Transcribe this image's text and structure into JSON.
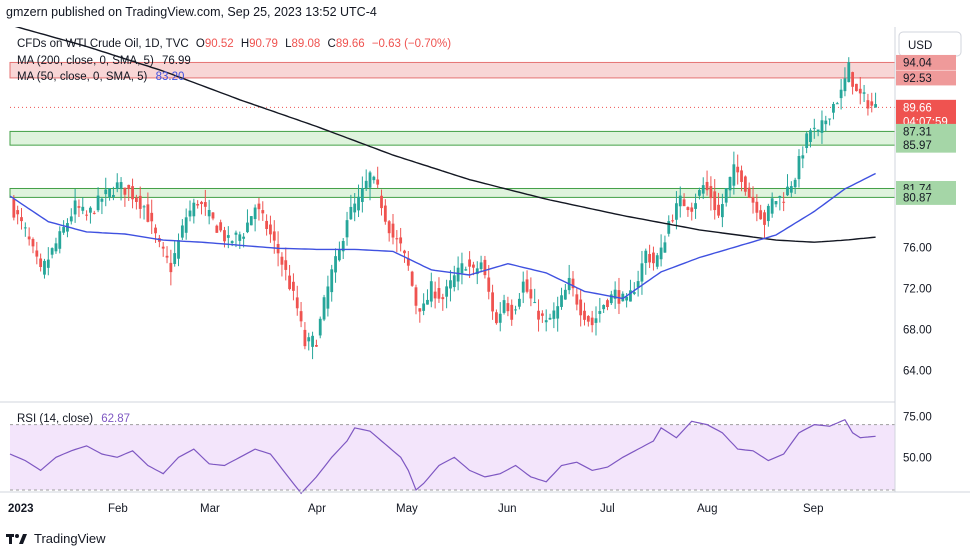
{
  "header": {
    "published": "gmzern published on TradingView.com, Sep 25, 2023 13:52 UTC-4"
  },
  "legend": {
    "symbol": "CFDs on WTI Crude Oil, 1D, TVC",
    "o_label": "O",
    "o": "90.52",
    "h_label": "H",
    "h": "90.79",
    "l_label": "L",
    "l": "89.08",
    "c_label": "C",
    "c": "89.66",
    "change": "−0.63 (−0.70%)",
    "ma200_label": "MA (200, close, 0, SMA, 5)",
    "ma200_value": "76.99",
    "ma50_label": "MA (50, close, 0, SMA, 5)",
    "ma50_value": "83.20"
  },
  "currency_button": "USD",
  "rsi": {
    "label": "RSI (14, close)",
    "value": "62.87",
    "ticks": [
      "75.00",
      "50.00"
    ]
  },
  "footer": {
    "brand": "TradingView"
  },
  "colors": {
    "up": "#26a69a",
    "down": "#ef5350",
    "ma200": "#131722",
    "ma50": "#3f51e0",
    "rsi": "#7e57c2",
    "resistance_zone": "#f8d6d6",
    "support_zone": "#dff3dd"
  },
  "chart_data": {
    "type": "candlestick",
    "timeframe": "1D",
    "ylim": [
      61.0,
      97.5
    ],
    "y_ticks": [
      "64.00",
      "68.00",
      "72.00",
      "76.00"
    ],
    "x_ticks": [
      "2023",
      "Feb",
      "Mar",
      "Apr",
      "May",
      "Jun",
      "Jul",
      "Aug",
      "Sep"
    ],
    "price_labels": [
      {
        "text": "94.04",
        "value": 94.04,
        "kind": "resistance"
      },
      {
        "text": "92.53",
        "value": 92.53,
        "kind": "resistance"
      },
      {
        "text": "89.66",
        "value": 89.66,
        "kind": "last"
      },
      {
        "text": "04:07:59",
        "value": 88.5,
        "kind": "countdown"
      },
      {
        "text": "87.31",
        "value": 87.31,
        "kind": "support"
      },
      {
        "text": "85.97",
        "value": 85.97,
        "kind": "support"
      },
      {
        "text": "81.74",
        "value": 81.74,
        "kind": "support"
      },
      {
        "text": "80.87",
        "value": 80.87,
        "kind": "support"
      }
    ],
    "zones": [
      {
        "top": 94.04,
        "bottom": 92.53,
        "kind": "resistance"
      },
      {
        "top": 87.31,
        "bottom": 85.97,
        "kind": "support"
      },
      {
        "top": 81.74,
        "bottom": 80.87,
        "kind": "support"
      }
    ],
    "last_close": 89.66,
    "close_path": [
      [
        0,
        80.3
      ],
      [
        4,
        77.5
      ],
      [
        8,
        73.5
      ],
      [
        13,
        77.0
      ],
      [
        17,
        80.0
      ],
      [
        20,
        79.0
      ],
      [
        24,
        80.8
      ],
      [
        28,
        82.0
      ],
      [
        31,
        81.5
      ],
      [
        35,
        80.0
      ],
      [
        39,
        76.0
      ],
      [
        42,
        74.0
      ],
      [
        46,
        79.0
      ],
      [
        49,
        80.5
      ],
      [
        53,
        78.5
      ],
      [
        57,
        76.5
      ],
      [
        61,
        77.5
      ],
      [
        64,
        80.0
      ],
      [
        67,
        78.0
      ],
      [
        70,
        75.5
      ],
      [
        72,
        73.5
      ],
      [
        75,
        70.0
      ],
      [
        77,
        66.5
      ],
      [
        80,
        67.0
      ],
      [
        82,
        70.5
      ],
      [
        84,
        73.5
      ],
      [
        86,
        75.5
      ],
      [
        88,
        79.0
      ],
      [
        91,
        80.5
      ],
      [
        94,
        83.0
      ],
      [
        96,
        81.5
      ],
      [
        98,
        79.0
      ],
      [
        100,
        77.0
      ],
      [
        102,
        76.0
      ],
      [
        104,
        74.0
      ],
      [
        106,
        70.5
      ],
      [
        108,
        70.0
      ],
      [
        110,
        72.0
      ],
      [
        113,
        71.0
      ],
      [
        116,
        73.0
      ],
      [
        119,
        74.5
      ],
      [
        121,
        73.5
      ],
      [
        123,
        74.5
      ],
      [
        125,
        71.5
      ],
      [
        127,
        68.5
      ],
      [
        129,
        71.0
      ],
      [
        131,
        69.5
      ],
      [
        134,
        72.5
      ],
      [
        137,
        70.0
      ],
      [
        140,
        68.5
      ],
      [
        143,
        70.0
      ],
      [
        146,
        72.5
      ],
      [
        149,
        70.0
      ],
      [
        152,
        68.5
      ],
      [
        155,
        70.5
      ],
      [
        158,
        71.5
      ],
      [
        161,
        70.5
      ],
      [
        164,
        73.0
      ],
      [
        166,
        75.5
      ],
      [
        168,
        74.5
      ],
      [
        170,
        75.5
      ],
      [
        172,
        78.5
      ],
      [
        175,
        80.5
      ],
      [
        178,
        80.0
      ],
      [
        181,
        82.0
      ],
      [
        183,
        81.0
      ],
      [
        185,
        79.0
      ],
      [
        187,
        81.5
      ],
      [
        189,
        83.5
      ],
      [
        191,
        83.0
      ],
      [
        193,
        81.0
      ],
      [
        195,
        80.0
      ],
      [
        197,
        78.5
      ],
      [
        199,
        80.5
      ],
      [
        202,
        81.0
      ],
      [
        205,
        83.0
      ],
      [
        207,
        85.5
      ],
      [
        209,
        87.5
      ],
      [
        211,
        87.0
      ],
      [
        213,
        88.5
      ],
      [
        215,
        90.0
      ],
      [
        217,
        91.0
      ],
      [
        219,
        93.5
      ],
      [
        221,
        91.0
      ],
      [
        223,
        90.5
      ],
      [
        225,
        89.8
      ],
      [
        226,
        89.66
      ]
    ],
    "ma200_path": [
      [
        0,
        97.7
      ],
      [
        20,
        95.6
      ],
      [
        40,
        93.2
      ],
      [
        60,
        90.4
      ],
      [
        80,
        87.8
      ],
      [
        100,
        85.0
      ],
      [
        120,
        82.6
      ],
      [
        140,
        80.7
      ],
      [
        160,
        79.1
      ],
      [
        180,
        77.7
      ],
      [
        190,
        77.2
      ],
      [
        200,
        76.7
      ],
      [
        210,
        76.5
      ],
      [
        218,
        76.7
      ],
      [
        226,
        76.99
      ]
    ],
    "ma50_path": [
      [
        0,
        81.0
      ],
      [
        10,
        78.5
      ],
      [
        20,
        77.5
      ],
      [
        30,
        77.3
      ],
      [
        40,
        76.7
      ],
      [
        50,
        76.5
      ],
      [
        60,
        76.2
      ],
      [
        70,
        75.9
      ],
      [
        80,
        75.8
      ],
      [
        90,
        75.8
      ],
      [
        100,
        75.6
      ],
      [
        110,
        73.8
      ],
      [
        120,
        73.3
      ],
      [
        130,
        74.4
      ],
      [
        140,
        73.5
      ],
      [
        150,
        71.7
      ],
      [
        160,
        71.0
      ],
      [
        170,
        73.6
      ],
      [
        180,
        75.0
      ],
      [
        190,
        76.1
      ],
      [
        200,
        77.2
      ],
      [
        210,
        79.5
      ],
      [
        218,
        81.7
      ],
      [
        226,
        83.2
      ]
    ],
    "rsi_path": [
      [
        0,
        52
      ],
      [
        4,
        48
      ],
      [
        8,
        42
      ],
      [
        12,
        50
      ],
      [
        16,
        54
      ],
      [
        20,
        57
      ],
      [
        24,
        52
      ],
      [
        28,
        50
      ],
      [
        32,
        54
      ],
      [
        36,
        45
      ],
      [
        40,
        40
      ],
      [
        44,
        50
      ],
      [
        48,
        55
      ],
      [
        52,
        46
      ],
      [
        56,
        45
      ],
      [
        60,
        50
      ],
      [
        64,
        55
      ],
      [
        68,
        52
      ],
      [
        72,
        40
      ],
      [
        76,
        28
      ],
      [
        80,
        38
      ],
      [
        84,
        50
      ],
      [
        88,
        60
      ],
      [
        90,
        68
      ],
      [
        94,
        66
      ],
      [
        98,
        58
      ],
      [
        102,
        50
      ],
      [
        104,
        42
      ],
      [
        106,
        30
      ],
      [
        108,
        34
      ],
      [
        112,
        45
      ],
      [
        116,
        50
      ],
      [
        120,
        42
      ],
      [
        124,
        38
      ],
      [
        128,
        40
      ],
      [
        132,
        45
      ],
      [
        136,
        38
      ],
      [
        140,
        35
      ],
      [
        144,
        45
      ],
      [
        148,
        47
      ],
      [
        152,
        42
      ],
      [
        156,
        44
      ],
      [
        160,
        50
      ],
      [
        164,
        55
      ],
      [
        168,
        60
      ],
      [
        170,
        68
      ],
      [
        174,
        62
      ],
      [
        178,
        72
      ],
      [
        182,
        70
      ],
      [
        186,
        65
      ],
      [
        190,
        55
      ],
      [
        194,
        54
      ],
      [
        198,
        48
      ],
      [
        202,
        52
      ],
      [
        206,
        65
      ],
      [
        210,
        70
      ],
      [
        214,
        69
      ],
      [
        218,
        73
      ],
      [
        220,
        65
      ],
      [
        222,
        62
      ],
      [
        226,
        62.87
      ]
    ],
    "rsi_ylim": [
      30,
      82
    ],
    "rsi_band": [
      70,
      30
    ]
  }
}
